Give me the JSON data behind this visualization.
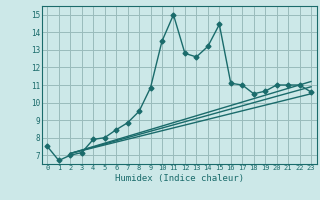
{
  "xlabel": "Humidex (Indice chaleur)",
  "xlim": [
    -0.5,
    23.5
  ],
  "ylim": [
    6.5,
    15.5
  ],
  "yticks": [
    7,
    8,
    9,
    10,
    11,
    12,
    13,
    14,
    15
  ],
  "xticks": [
    0,
    1,
    2,
    3,
    4,
    5,
    6,
    7,
    8,
    9,
    10,
    11,
    12,
    13,
    14,
    15,
    16,
    17,
    18,
    19,
    20,
    21,
    22,
    23
  ],
  "background_color": "#cce8e8",
  "grid_color": "#99bbbb",
  "line_color": "#1a6b6b",
  "line1_x": [
    0,
    1,
    2,
    3,
    4,
    5,
    6,
    7,
    8,
    9,
    10,
    11,
    12,
    13,
    14,
    15,
    16,
    17,
    18,
    19,
    20,
    21,
    22,
    23
  ],
  "line1_y": [
    7.5,
    6.7,
    7.0,
    7.15,
    7.9,
    8.0,
    8.45,
    8.85,
    9.5,
    10.85,
    13.5,
    15.0,
    12.8,
    12.6,
    13.2,
    14.45,
    11.1,
    11.0,
    10.5,
    10.65,
    11.0,
    11.0,
    11.0,
    10.6
  ],
  "line2_x": [
    2,
    23
  ],
  "line2_y": [
    7.1,
    10.5
  ],
  "line3_x": [
    2,
    23
  ],
  "line3_y": [
    7.1,
    10.9
  ],
  "line4_x": [
    2,
    23
  ],
  "line4_y": [
    7.1,
    11.2
  ],
  "marker": "D",
  "markersize": 2.5,
  "linewidth": 1.0
}
